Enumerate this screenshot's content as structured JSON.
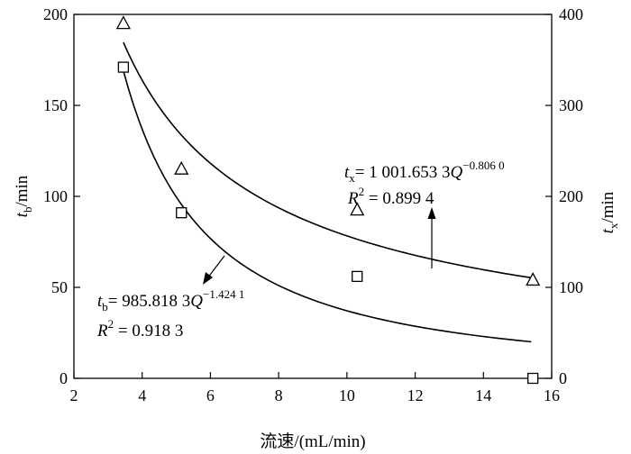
{
  "chart_data": {
    "type": "scatter",
    "xlabel": "流速/(mL/min)",
    "ylabel_left": {
      "main": "t",
      "sub": "b",
      "unit": "/min"
    },
    "ylabel_right": {
      "main": "t",
      "sub": "x",
      "unit": "/min"
    },
    "xlim": [
      2,
      16
    ],
    "ylim_left": [
      0,
      200
    ],
    "ylim_right": [
      0,
      400
    ],
    "x_ticks": [
      "2",
      "4",
      "6",
      "8",
      "10",
      "12",
      "14",
      "16"
    ],
    "y_left_ticks": [
      "0",
      "50",
      "100",
      "150",
      "200"
    ],
    "y_right_ticks": [
      "0",
      "100",
      "200",
      "300",
      "400"
    ],
    "grid": false,
    "series": [
      {
        "marker": "square",
        "axis": "left",
        "x": [
          3.45,
          5.15,
          10.3,
          15.45
        ],
        "y": [
          171,
          91,
          56,
          0
        ]
      },
      {
        "marker": "triangle",
        "axis": "right",
        "x": [
          3.45,
          5.15,
          10.3,
          15.45
        ],
        "y": [
          390,
          230,
          185,
          108
        ]
      }
    ],
    "fits": [
      {
        "axis": "left",
        "a": 985.8183,
        "b": -1.4241,
        "x_range": [
          3.45,
          15.4
        ]
      },
      {
        "axis": "right",
        "a": 1001.6533,
        "b": -0.806,
        "x_range": [
          3.45,
          15.4
        ]
      }
    ],
    "annotations": {
      "tx_eq": {
        "lhs_main": "t",
        "lhs_sub": "x",
        "rhs": "= 1 001.653 3",
        "var": "Q",
        "exp": "−0.806 0"
      },
      "tx_r2": {
        "r": "R",
        "exp": "2",
        "rhs": " = 0.899 4"
      },
      "tb_eq": {
        "lhs_main": "t",
        "lhs_sub": "b",
        "rhs": "= 985.818 3",
        "var": "Q",
        "exp": "−1.424 1"
      },
      "tb_r2": {
        "r": "R",
        "exp": "2",
        "rhs": " = 0.918 3"
      }
    }
  }
}
